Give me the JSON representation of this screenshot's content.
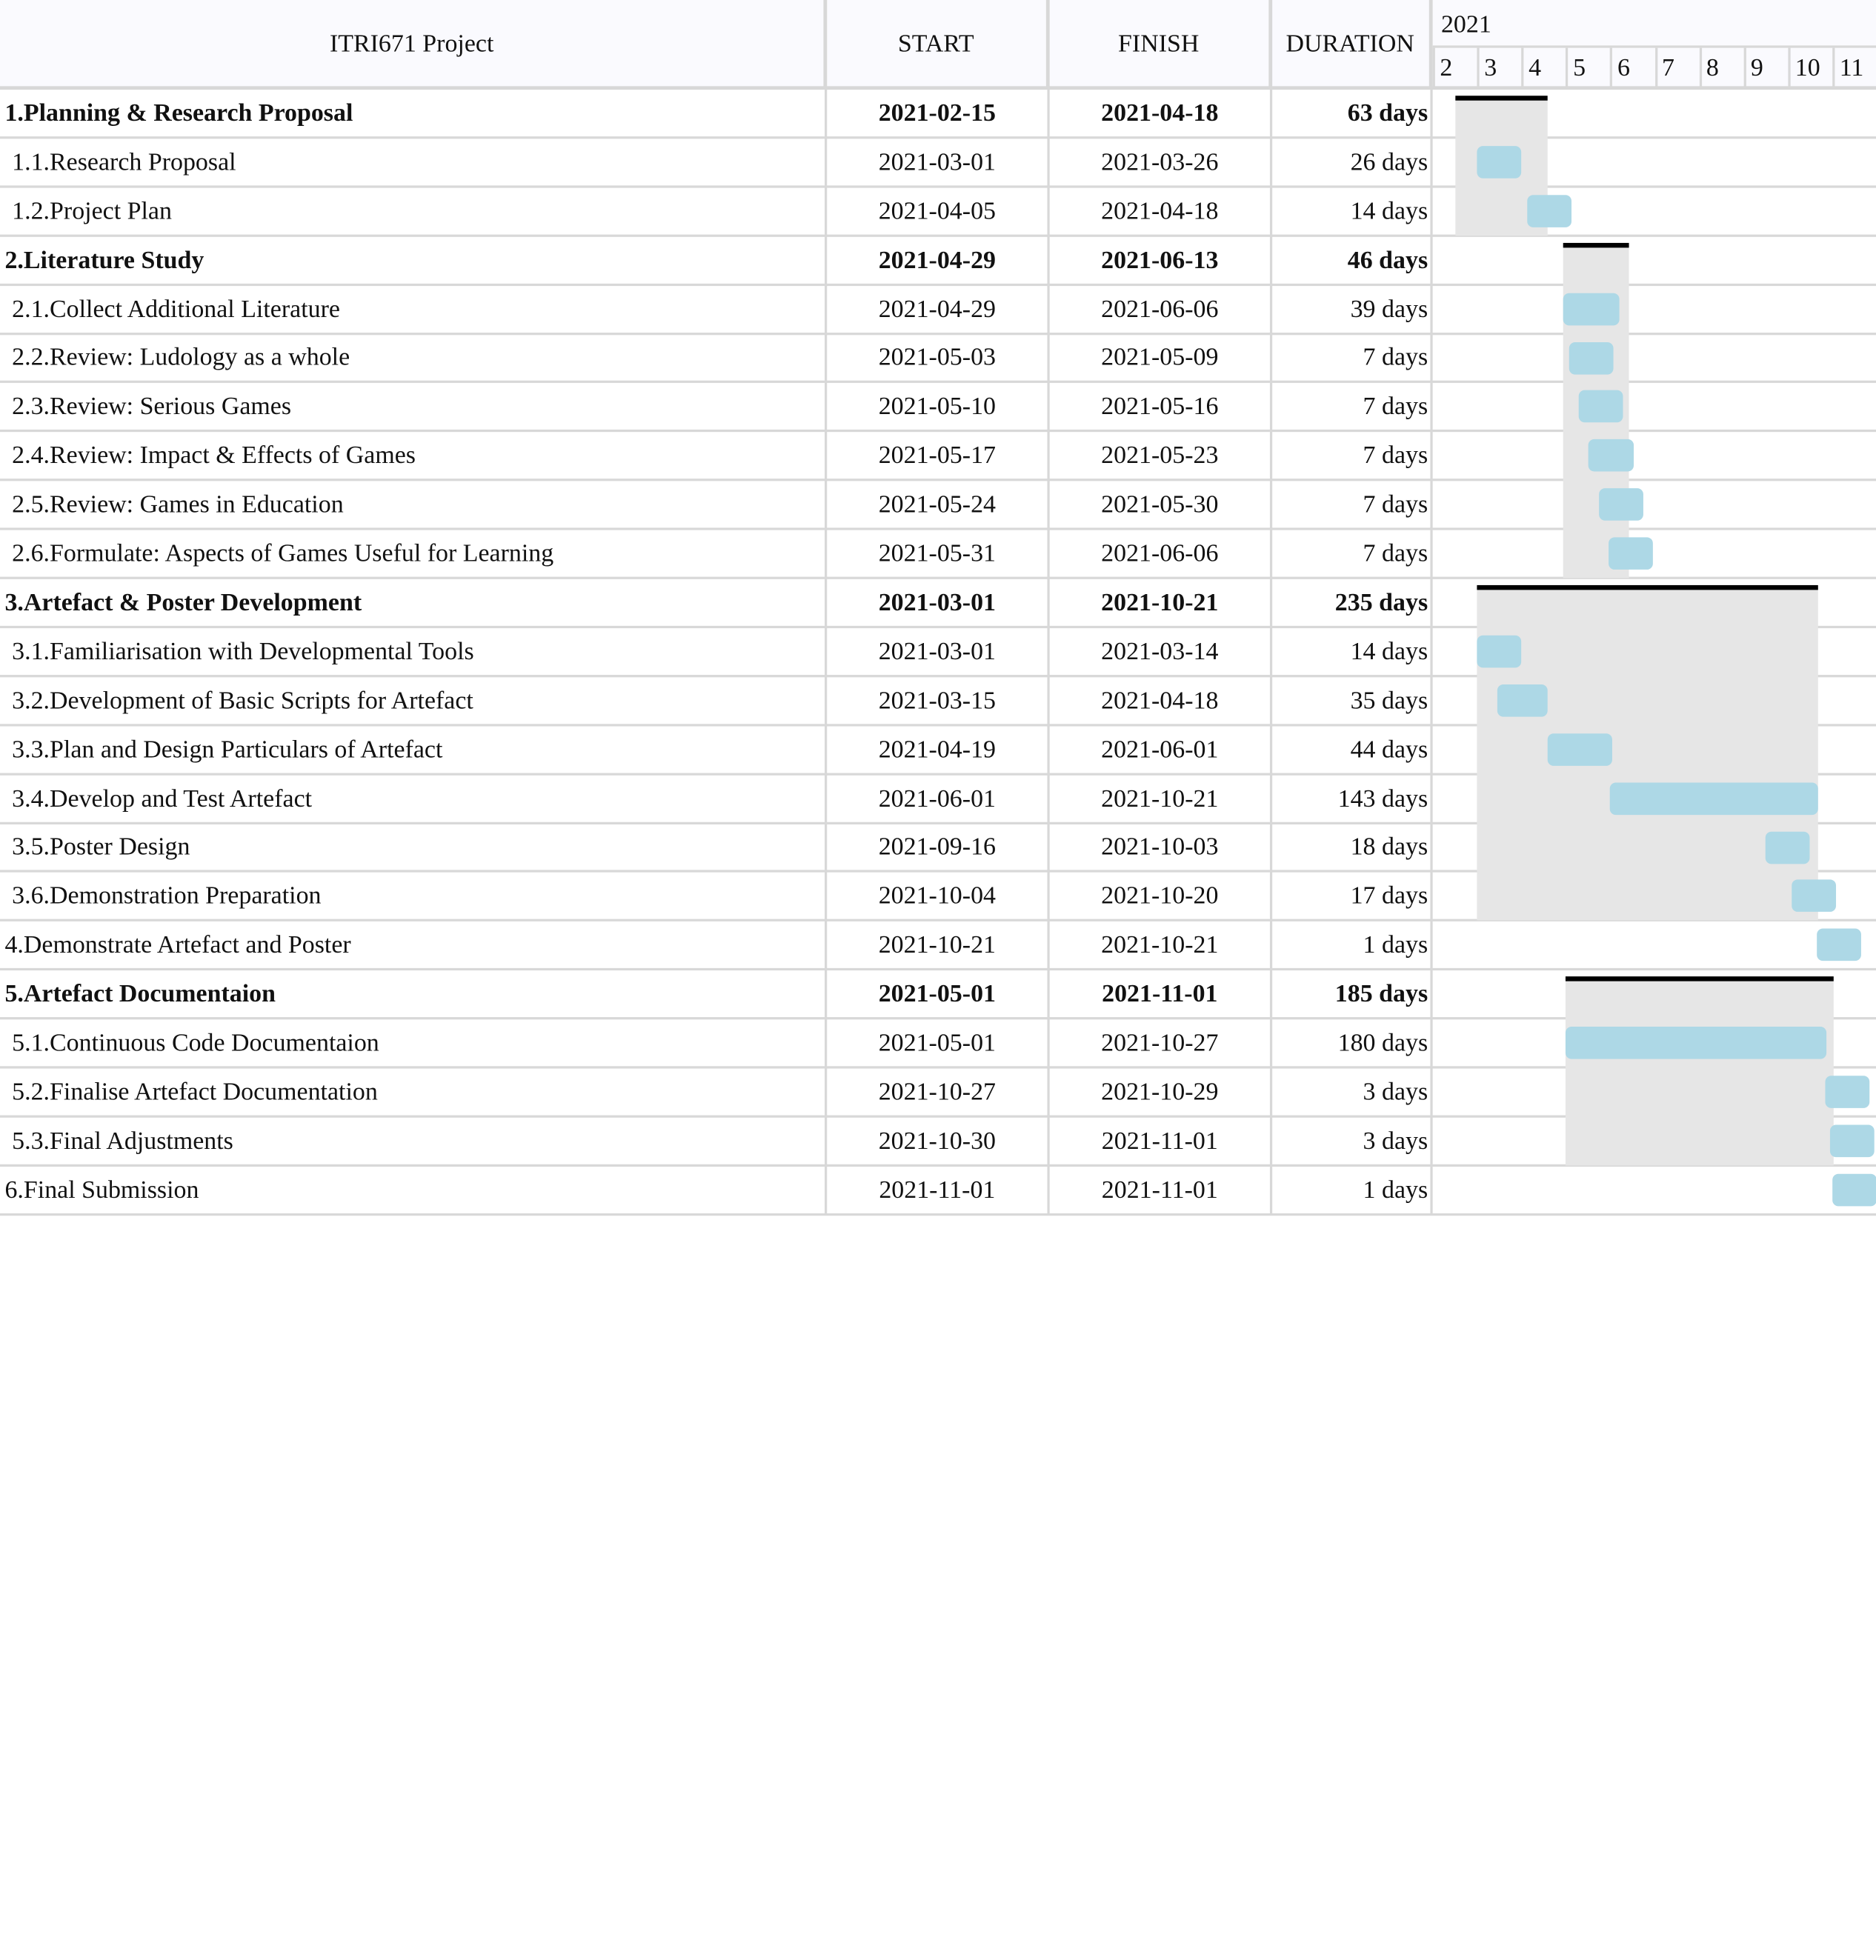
{
  "chart_data": {
    "type": "gantt",
    "title": "ITRI671 Project",
    "columns": [
      "ITRI671 Project",
      "START",
      "FINISH",
      "DURATION"
    ],
    "year_label": "2021",
    "month_ticks": [
      "2",
      "3",
      "4",
      "5",
      "6",
      "7",
      "8",
      "9",
      "10",
      "11"
    ],
    "time_range": [
      "2021-02-01",
      "2021-12-01"
    ],
    "colors": {
      "bar": "#add8e6",
      "summary_line": "#000000",
      "summary_shade": "#e6e6e6",
      "grid": "#d8d8d8",
      "header_bg": "#fafafe"
    },
    "tasks": [
      {
        "name": "1.Planning & Research Proposal",
        "start": "2021-02-15",
        "finish": "2021-04-18",
        "duration": "63 days",
        "summary": true
      },
      {
        "name": "1.1.Research Proposal",
        "start": "2021-03-01",
        "finish": "2021-03-26",
        "duration": "26 days",
        "summary": false,
        "group": 0
      },
      {
        "name": "1.2.Project Plan",
        "start": "2021-04-05",
        "finish": "2021-04-18",
        "duration": "14 days",
        "summary": false,
        "group": 0
      },
      {
        "name": "2.Literature Study",
        "start": "2021-04-29",
        "finish": "2021-06-13",
        "duration": "46 days",
        "summary": true
      },
      {
        "name": "2.1.Collect Additional Literature",
        "start": "2021-04-29",
        "finish": "2021-06-06",
        "duration": "39 days",
        "summary": false,
        "group": 3
      },
      {
        "name": "2.2.Review: Ludology as a whole",
        "start": "2021-05-03",
        "finish": "2021-05-09",
        "duration": "7 days",
        "summary": false,
        "group": 3
      },
      {
        "name": "2.3.Review: Serious Games",
        "start": "2021-05-10",
        "finish": "2021-05-16",
        "duration": "7 days",
        "summary": false,
        "group": 3
      },
      {
        "name": "2.4.Review: Impact & Effects of Games",
        "start": "2021-05-17",
        "finish": "2021-05-23",
        "duration": "7 days",
        "summary": false,
        "group": 3
      },
      {
        "name": "2.5.Review: Games in Education",
        "start": "2021-05-24",
        "finish": "2021-05-30",
        "duration": "7 days",
        "summary": false,
        "group": 3
      },
      {
        "name": "2.6.Formulate: Aspects of Games Useful for Learning",
        "start": "2021-05-31",
        "finish": "2021-06-06",
        "duration": "7 days",
        "summary": false,
        "group": 3
      },
      {
        "name": "3.Artefact & Poster Development",
        "start": "2021-03-01",
        "finish": "2021-10-21",
        "duration": "235 days",
        "summary": true
      },
      {
        "name": "3.1.Familiarisation with Developmental Tools",
        "start": "2021-03-01",
        "finish": "2021-03-14",
        "duration": "14 days",
        "summary": false,
        "group": 10
      },
      {
        "name": "3.2.Development of Basic Scripts for Artefact",
        "start": "2021-03-15",
        "finish": "2021-04-18",
        "duration": "35 days",
        "summary": false,
        "group": 10
      },
      {
        "name": "3.3.Plan and Design Particulars of Artefact",
        "start": "2021-04-19",
        "finish": "2021-06-01",
        "duration": "44 days",
        "summary": false,
        "group": 10
      },
      {
        "name": "3.4.Develop and Test Artefact",
        "start": "2021-06-01",
        "finish": "2021-10-21",
        "duration": "143 days",
        "summary": false,
        "group": 10
      },
      {
        "name": "3.5.Poster Design",
        "start": "2021-09-16",
        "finish": "2021-10-03",
        "duration": "18 days",
        "summary": false,
        "group": 10
      },
      {
        "name": "3.6.Demonstration Preparation",
        "start": "2021-10-04",
        "finish": "2021-10-20",
        "duration": "17 days",
        "summary": false,
        "group": 10
      },
      {
        "name": "4.Demonstrate Artefact and Poster",
        "start": "2021-10-21",
        "finish": "2021-10-21",
        "duration": "1 days",
        "summary": false,
        "top_level": true
      },
      {
        "name": "5.Artefact Documentaion",
        "start": "2021-05-01",
        "finish": "2021-11-01",
        "duration": "185 days",
        "summary": true
      },
      {
        "name": "5.1.Continuous Code Documentaion",
        "start": "2021-05-01",
        "finish": "2021-10-27",
        "duration": "180 days",
        "summary": false,
        "group": 18
      },
      {
        "name": "5.2.Finalise Artefact Documentation",
        "start": "2021-10-27",
        "finish": "2021-10-29",
        "duration": "3 days",
        "summary": false,
        "group": 18
      },
      {
        "name": "5.3.Final Adjustments",
        "start": "2021-10-30",
        "finish": "2021-11-01",
        "duration": "3 days",
        "summary": false,
        "group": 18
      },
      {
        "name": "6.Final Submission",
        "start": "2021-11-01",
        "finish": "2021-11-01",
        "duration": "1 days",
        "summary": false,
        "top_level": true
      }
    ]
  }
}
